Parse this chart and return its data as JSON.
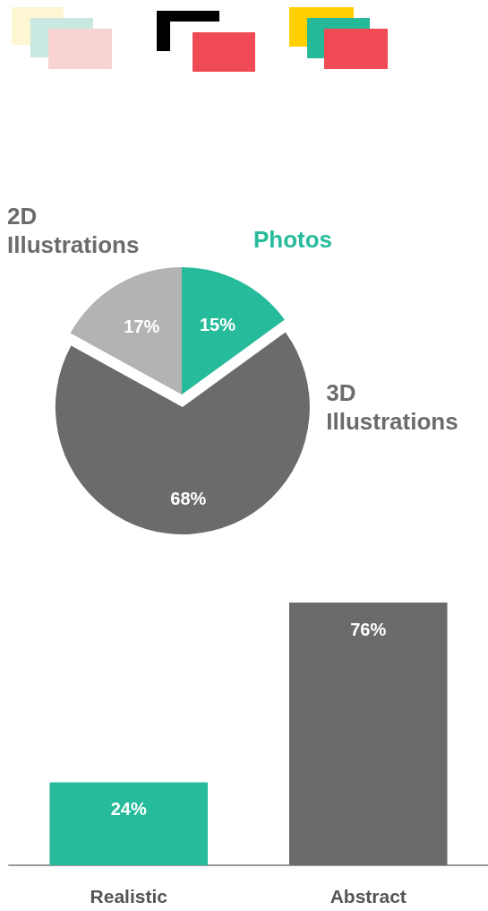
{
  "chart_data": [
    {
      "type": "pie",
      "categories": [
        "Photos",
        "3D Illustrations",
        "2D Illustrations"
      ],
      "values": [
        15,
        68,
        17
      ],
      "value_labels": [
        "15%",
        "68%",
        "17%"
      ],
      "colors": [
        "#26bb9b",
        "#6b6b6b",
        "#b3b3b3"
      ],
      "legend": false
    },
    {
      "type": "bar",
      "categories": [
        "Realistic",
        "Abstract"
      ],
      "values": [
        24,
        76
      ],
      "value_labels": [
        "24%",
        "76%"
      ],
      "colors": [
        "#26bb9b",
        "#6b6b6b"
      ],
      "grid": false,
      "legend": false
    }
  ]
}
